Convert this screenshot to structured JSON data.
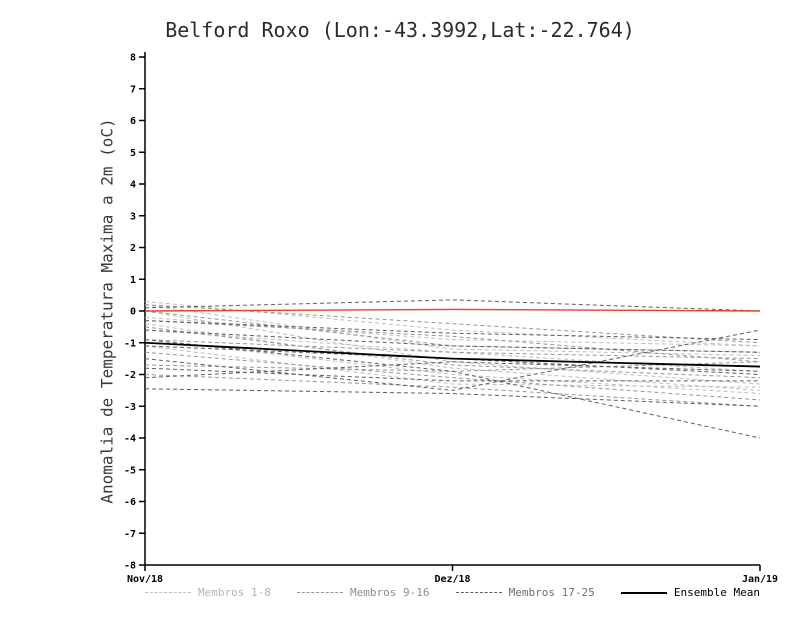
{
  "chart_data": {
    "type": "line",
    "title": "Belford Roxo (Lon:-43.3992,Lat:-22.764)",
    "ylabel": "Anomalia de Temperatura Maxima a 2m (oC)",
    "xlabel": "",
    "ylim": [
      -8,
      8
    ],
    "ytick_step": 1,
    "grid": false,
    "x": [
      0,
      0.5,
      1
    ],
    "x_ticklabels": [
      "Nov/18",
      "Dez/18",
      "Jan/19"
    ],
    "legend_position": "bottom",
    "legend": [
      {
        "label": "Membros 1-8",
        "color": "#bebebe",
        "dash": true,
        "text_color": "#b4b4b4"
      },
      {
        "label": "Membros 9-16",
        "color": "#969696",
        "dash": true,
        "text_color": "#8c8c8c"
      },
      {
        "label": "Membros 17-25",
        "color": "#5f5f5f",
        "dash": true,
        "text_color": "#6e6e6e"
      },
      {
        "label": "Ensemble Mean",
        "color": "#000000",
        "dash": false,
        "text_color": "#000000"
      }
    ],
    "series": [
      {
        "name": "membro-1",
        "group": "Membros 1-8",
        "color": "#bebebe",
        "dash": true,
        "width": 1,
        "values": [
          0.3,
          -0.6,
          -1.1
        ]
      },
      {
        "name": "membro-2",
        "group": "Membros 1-8",
        "color": "#bebebe",
        "dash": true,
        "width": 1,
        "values": [
          0.2,
          -1.2,
          -1.4
        ]
      },
      {
        "name": "membro-3",
        "group": "Membros 1-8",
        "color": "#bebebe",
        "dash": true,
        "width": 1,
        "values": [
          0.0,
          -1.6,
          -2.3
        ]
      },
      {
        "name": "membro-4",
        "group": "Membros 1-8",
        "color": "#bebebe",
        "dash": true,
        "width": 1,
        "values": [
          -0.2,
          -0.9,
          -1.1
        ]
      },
      {
        "name": "membro-5",
        "group": "Membros 1-8",
        "color": "#bebebe",
        "dash": true,
        "width": 1,
        "values": [
          -0.4,
          -1.8,
          -2.5
        ]
      },
      {
        "name": "membro-6",
        "group": "Membros 1-8",
        "color": "#bebebe",
        "dash": true,
        "width": 1,
        "values": [
          -0.6,
          -1.3,
          -1.9
        ]
      },
      {
        "name": "membro-7",
        "group": "Membros 1-8",
        "color": "#bebebe",
        "dash": true,
        "width": 1,
        "values": [
          -0.9,
          -2.0,
          -2.6
        ]
      },
      {
        "name": "membro-8",
        "group": "Membros 1-8",
        "color": "#bebebe",
        "dash": true,
        "width": 1,
        "values": [
          -1.1,
          -2.3,
          -2.4
        ]
      },
      {
        "name": "membro-9",
        "group": "Membros 9-16",
        "color": "#969696",
        "dash": true,
        "width": 1,
        "values": [
          0.2,
          -0.4,
          -1.0
        ]
      },
      {
        "name": "membro-10",
        "group": "Membros 9-16",
        "color": "#969696",
        "dash": true,
        "width": 1,
        "values": [
          0.0,
          -1.1,
          -1.3
        ]
      },
      {
        "name": "membro-11",
        "group": "Membros 9-16",
        "color": "#969696",
        "dash": true,
        "width": 1,
        "values": [
          -0.3,
          -0.8,
          -1.6
        ]
      },
      {
        "name": "membro-12",
        "group": "Membros 9-16",
        "color": "#969696",
        "dash": true,
        "width": 1,
        "values": [
          -0.5,
          -1.7,
          -2.1
        ]
      },
      {
        "name": "membro-13",
        "group": "Membros 9-16",
        "color": "#969696",
        "dash": true,
        "width": 1,
        "values": [
          -0.9,
          -1.3,
          -1.5
        ]
      },
      {
        "name": "membro-14",
        "group": "Membros 9-16",
        "color": "#969696",
        "dash": true,
        "width": 1,
        "values": [
          -1.3,
          -2.1,
          -2.8
        ]
      },
      {
        "name": "membro-15",
        "group": "Membros 9-16",
        "color": "#969696",
        "dash": true,
        "width": 1,
        "values": [
          -1.7,
          -1.9,
          -1.6
        ]
      },
      {
        "name": "membro-16",
        "group": "Membros 9-16",
        "color": "#969696",
        "dash": true,
        "width": 1,
        "values": [
          -2.0,
          -2.4,
          -3.0
        ]
      },
      {
        "name": "membro-17",
        "group": "Membros 17-25",
        "color": "#5f5f5f",
        "dash": true,
        "width": 1,
        "values": [
          0.1,
          0.35,
          0.0
        ]
      },
      {
        "name": "membro-18",
        "group": "Membros 17-25",
        "color": "#5f5f5f",
        "dash": true,
        "width": 1,
        "values": [
          -0.3,
          -0.7,
          -0.9
        ]
      },
      {
        "name": "membro-19",
        "group": "Membros 17-25",
        "color": "#5f5f5f",
        "dash": true,
        "width": 1,
        "values": [
          -0.6,
          -1.1,
          -1.3
        ]
      },
      {
        "name": "membro-20",
        "group": "Membros 17-25",
        "color": "#5f5f5f",
        "dash": true,
        "width": 1,
        "values": [
          -0.9,
          -1.9,
          -4.0
        ]
      },
      {
        "name": "membro-21",
        "group": "Membros 17-25",
        "color": "#5f5f5f",
        "dash": true,
        "width": 1,
        "values": [
          -1.1,
          -1.5,
          -2.0
        ]
      },
      {
        "name": "membro-22",
        "group": "Membros 17-25",
        "color": "#5f5f5f",
        "dash": true,
        "width": 1,
        "values": [
          -1.5,
          -2.5,
          -0.6
        ]
      },
      {
        "name": "membro-23",
        "group": "Membros 17-25",
        "color": "#5f5f5f",
        "dash": true,
        "width": 1,
        "values": [
          -1.8,
          -2.2,
          -2.2
        ]
      },
      {
        "name": "membro-24",
        "group": "Membros 17-25",
        "color": "#5f5f5f",
        "dash": true,
        "width": 1,
        "values": [
          -2.1,
          -1.6,
          -1.9
        ]
      },
      {
        "name": "membro-25",
        "group": "Membros 17-25",
        "color": "#5f5f5f",
        "dash": true,
        "width": 1,
        "values": [
          -2.45,
          -2.6,
          -3.0
        ]
      },
      {
        "name": "reference-zero-line",
        "group": "reference",
        "color": "#e8402c",
        "dash": false,
        "width": 1.4,
        "values": [
          0.0,
          0.05,
          0.0
        ]
      },
      {
        "name": "ensemble-mean",
        "group": "Ensemble Mean",
        "color": "#000000",
        "dash": false,
        "width": 1.8,
        "values": [
          -1.0,
          -1.5,
          -1.75
        ]
      }
    ]
  }
}
